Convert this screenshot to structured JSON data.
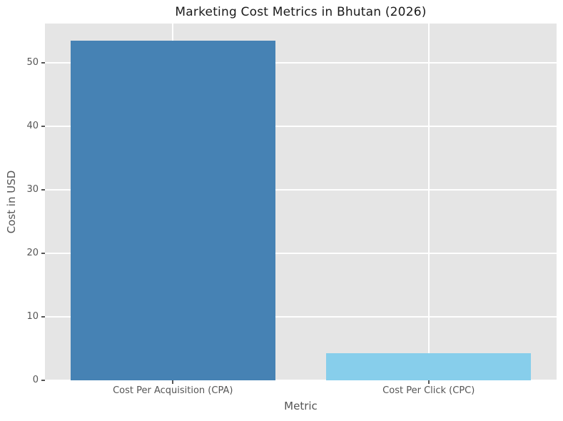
{
  "chart_data": {
    "type": "bar",
    "title": "Marketing Cost Metrics in Bhutan (2026)",
    "categories": [
      "Cost Per Acquisition (CPA)",
      "Cost Per Click (CPC)"
    ],
    "values": [
      53.5,
      4.3
    ],
    "bar_colors": [
      "#4682b4",
      "#87ceeb"
    ],
    "xlabel": "Metric",
    "ylabel": "Cost in USD",
    "ylim": [
      0,
      56.175
    ],
    "yticks": [
      0,
      10,
      20,
      30,
      40,
      50
    ],
    "grid": true,
    "legend_position": "none",
    "plot_background": "#e5e5e5",
    "grid_color": "#ffffff",
    "bar_width_fraction": 0.8
  }
}
